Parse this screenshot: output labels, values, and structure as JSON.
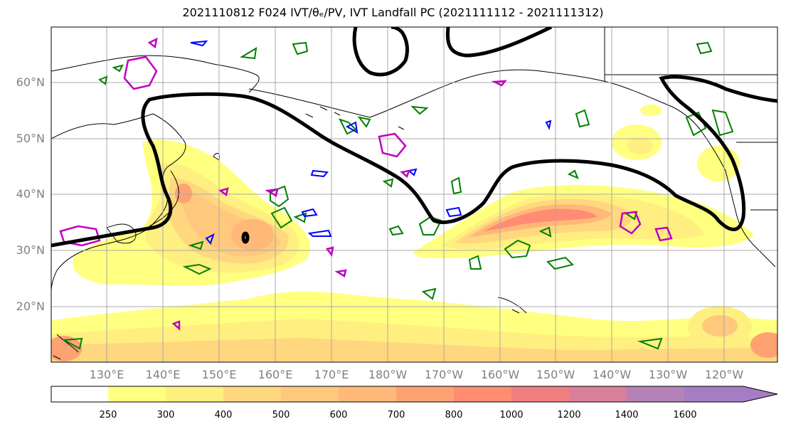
{
  "title": "2021110812 F024 IVT/θₑ/PV, IVT Landfall PC (2021111112 - 2021111312)",
  "lat_labels": [
    "60°N",
    "50°N",
    "40°N",
    "30°N",
    "20°N"
  ],
  "lon_labels": [
    "130°E",
    "140°E",
    "150°E",
    "160°E",
    "170°E",
    "180°W",
    "170°W",
    "160°W",
    "150°W",
    "140°W",
    "130°W",
    "120°W"
  ],
  "colorbar": {
    "ticks": [
      "250",
      "300",
      "400",
      "500",
      "600",
      "700",
      "800",
      "1000",
      "1200",
      "1400",
      "1600"
    ],
    "colors": [
      "#ffff80",
      "#ffee80",
      "#ffd77f",
      "#ffc87c",
      "#ffb878",
      "#ffa272",
      "#ff8c73",
      "#f07f80",
      "#d97f9a",
      "#b582b8",
      "#a67cc4"
    ]
  },
  "contour_colors": {
    "pc": "#000000",
    "theta_e": "#008000",
    "pv": "#0000ff",
    "ivt_alt": "#c000c0"
  }
}
